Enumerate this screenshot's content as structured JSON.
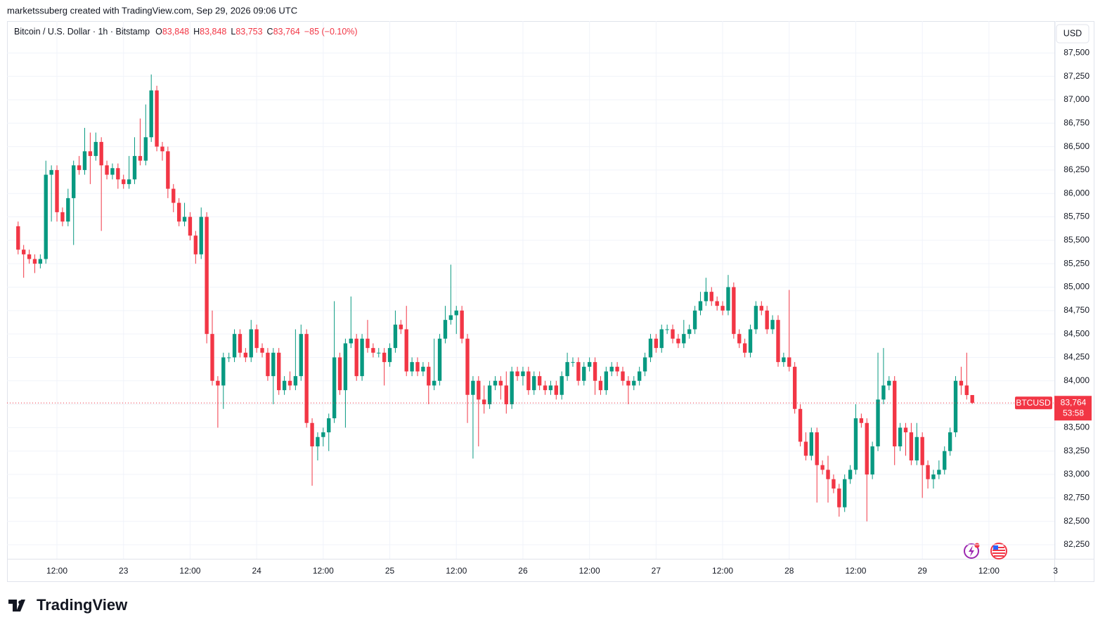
{
  "chart_data": {
    "type": "candlestick",
    "attribution": "marketssuberg created with TradingView.com, Sep 29, 2026 09:06 UTC",
    "brand": "TradingView",
    "currency": "USD",
    "legend": {
      "symbol": "Bitcoin / U.S. Dollar · 1h · Bitstamp",
      "fields": [
        {
          "key": "O",
          "value": "83,848"
        },
        {
          "key": "H",
          "value": "83,848"
        },
        {
          "key": "L",
          "value": "83,753"
        },
        {
          "key": "C",
          "value": "83,764"
        }
      ],
      "change": "−85 (−0.10%)"
    },
    "ticker": "BTCUSD",
    "last_price": {
      "value": 83764,
      "label": "83,764"
    },
    "countdown": "53:58",
    "up_color": "#089981",
    "down_color": "#f23645",
    "grid": true,
    "x": [
      "22 05:00",
      "22 06:00",
      "22 07:00",
      "22 08:00",
      "22 09:00",
      "22 10:00",
      "22 11:00",
      "22 12:00",
      "22 13:00",
      "22 14:00",
      "22 15:00",
      "22 16:00",
      "22 17:00",
      "22 18:00",
      "22 19:00",
      "22 20:00",
      "22 21:00",
      "22 22:00",
      "22 23:00",
      "23 00:00",
      "23 01:00",
      "23 02:00",
      "23 03:00",
      "23 04:00",
      "23 05:00",
      "23 06:00",
      "23 07:00",
      "23 08:00",
      "23 09:00",
      "23 10:00",
      "23 11:00",
      "23 12:00",
      "23 13:00",
      "23 14:00",
      "23 15:00",
      "23 16:00",
      "23 17:00",
      "23 18:00",
      "23 19:00",
      "23 20:00",
      "23 21:00",
      "23 22:00",
      "23 23:00",
      "24 00:00",
      "24 01:00",
      "24 02:00",
      "24 03:00",
      "24 04:00",
      "24 05:00",
      "24 06:00",
      "24 07:00",
      "24 08:00",
      "24 09:00",
      "24 10:00",
      "24 11:00",
      "24 12:00",
      "24 13:00",
      "24 14:00",
      "24 15:00",
      "24 16:00",
      "24 17:00",
      "24 18:00",
      "24 19:00",
      "24 20:00",
      "24 21:00",
      "24 22:00",
      "24 23:00",
      "25 00:00",
      "25 01:00",
      "25 02:00",
      "25 03:00",
      "25 04:00",
      "25 05:00",
      "25 06:00",
      "25 07:00",
      "25 08:00",
      "25 09:00",
      "25 10:00",
      "25 11:00",
      "25 12:00",
      "25 13:00",
      "25 14:00",
      "25 15:00",
      "25 16:00",
      "25 17:00",
      "25 18:00",
      "25 19:00",
      "25 20:00",
      "25 21:00",
      "25 22:00",
      "25 23:00",
      "26 00:00",
      "26 01:00",
      "26 02:00",
      "26 03:00",
      "26 04:00",
      "26 05:00",
      "26 06:00",
      "26 07:00",
      "26 08:00",
      "26 09:00",
      "26 10:00",
      "26 11:00",
      "26 12:00",
      "26 13:00",
      "26 14:00",
      "26 15:00",
      "26 16:00",
      "26 17:00",
      "26 18:00",
      "26 19:00",
      "26 20:00",
      "26 21:00",
      "26 22:00",
      "26 23:00",
      "27 00:00",
      "27 01:00",
      "27 02:00",
      "27 03:00",
      "27 04:00",
      "27 05:00",
      "27 06:00",
      "27 07:00",
      "27 08:00",
      "27 09:00",
      "27 10:00",
      "27 11:00",
      "27 12:00",
      "27 13:00",
      "27 14:00",
      "27 15:00",
      "27 16:00",
      "27 17:00",
      "27 18:00",
      "27 19:00",
      "27 20:00",
      "27 21:00",
      "27 22:00",
      "27 23:00",
      "28 00:00",
      "28 01:00",
      "28 02:00",
      "28 03:00",
      "28 04:00",
      "28 05:00",
      "28 06:00",
      "28 07:00",
      "28 08:00",
      "28 09:00",
      "28 10:00",
      "28 11:00",
      "28 12:00",
      "28 13:00",
      "28 14:00",
      "28 15:00",
      "28 16:00",
      "28 17:00",
      "28 18:00",
      "28 19:00",
      "28 20:00",
      "28 21:00",
      "28 22:00",
      "28 23:00",
      "29 00:00",
      "29 01:00",
      "29 02:00",
      "29 03:00",
      "29 04:00",
      "29 05:00",
      "29 06:00",
      "29 07:00",
      "29 08:00",
      "29 09:00"
    ],
    "open": [
      85650,
      85400,
      85350,
      85300,
      85250,
      85300,
      86200,
      86250,
      85800,
      85700,
      85950,
      86300,
      86250,
      86450,
      86400,
      86550,
      86300,
      86200,
      86270,
      86150,
      86100,
      86150,
      86400,
      86350,
      86600,
      87100,
      86500,
      86450,
      86050,
      85900,
      85700,
      85750,
      85550,
      85350,
      85750,
      84500,
      84000,
      83950,
      84250,
      84250,
      84500,
      84300,
      84250,
      84550,
      84350,
      84300,
      84050,
      84300,
      83900,
      84000,
      83950,
      84050,
      84500,
      83550,
      83300,
      83400,
      83450,
      83600,
      84250,
      83900,
      84400,
      84450,
      84050,
      84450,
      84350,
      84300,
      84300,
      84200,
      84350,
      84600,
      84550,
      84100,
      84200,
      84100,
      84150,
      83950,
      84000,
      84450,
      84650,
      84700,
      84750,
      84450,
      83850,
      84000,
      83800,
      83750,
      83950,
      84000,
      83950,
      83750,
      84100,
      84050,
      84100,
      83900,
      84050,
      83950,
      83900,
      83950,
      83850,
      84050,
      84200,
      84200,
      84000,
      84150,
      84200,
      84000,
      83900,
      84100,
      84150,
      84100,
      84000,
      83950,
      84000,
      84100,
      84250,
      84450,
      84350,
      84550,
      84550,
      84450,
      84400,
      84500,
      84550,
      84750,
      84850,
      84950,
      84850,
      84800,
      84750,
      85000,
      84500,
      84400,
      84300,
      84550,
      84800,
      84750,
      84550,
      84650,
      84200,
      84250,
      84150,
      83700,
      83350,
      83200,
      83450,
      83100,
      83050,
      82950,
      82850,
      82650,
      82950,
      83050,
      83600,
      83550,
      83000,
      83300,
      83800,
      83950,
      84000,
      83300,
      83500,
      83450,
      83150,
      83400,
      83100,
      82950,
      83000,
      83050,
      83250,
      83450,
      84000,
      83950,
      83848
    ],
    "high": [
      85700,
      85450,
      85400,
      85350,
      85350,
      86350,
      86300,
      86300,
      85850,
      86050,
      86350,
      86400,
      86700,
      86650,
      86650,
      86600,
      86350,
      86320,
      86320,
      86200,
      86400,
      86600,
      86800,
      86950,
      87270,
      87150,
      86550,
      86500,
      86100,
      85950,
      85900,
      85800,
      85600,
      85850,
      85800,
      84750,
      84050,
      84300,
      84300,
      84550,
      84550,
      84350,
      84650,
      84600,
      84400,
      84350,
      84350,
      84350,
      84050,
      84100,
      84550,
      84600,
      84550,
      83600,
      83450,
      83500,
      83650,
      84850,
      84300,
      84450,
      84900,
      84500,
      84500,
      84650,
      84400,
      84350,
      84350,
      84400,
      84750,
      84650,
      84800,
      84250,
      84250,
      84200,
      84200,
      84450,
      84500,
      84800,
      85240,
      84800,
      84800,
      84500,
      84050,
      84050,
      83950,
      84000,
      84050,
      84050,
      84100,
      84150,
      84150,
      84150,
      84150,
      84100,
      84100,
      84000,
      84000,
      84000,
      84100,
      84300,
      84250,
      84250,
      84200,
      84250,
      84250,
      84050,
      84150,
      84200,
      84200,
      84150,
      84050,
      84050,
      84150,
      84300,
      84500,
      84500,
      84600,
      84600,
      84600,
      84500,
      84650,
      84600,
      84800,
      84950,
      85100,
      85000,
      84900,
      84850,
      85130,
      85050,
      84550,
      84450,
      84600,
      84850,
      84850,
      84800,
      84700,
      84700,
      84300,
      84970,
      84200,
      83750,
      83450,
      83500,
      83500,
      83150,
      83200,
      83000,
      82900,
      83000,
      83100,
      83750,
      83650,
      83600,
      83350,
      84300,
      84350,
      84050,
      84050,
      83550,
      83550,
      83550,
      83550,
      83450,
      83150,
      83050,
      83150,
      83300,
      83500,
      84050,
      84150,
      84300,
      83848
    ],
    "low": [
      85350,
      85100,
      85250,
      85150,
      85200,
      85250,
      85700,
      85700,
      85650,
      85650,
      85450,
      86200,
      86200,
      86100,
      86350,
      85600,
      86150,
      86150,
      86050,
      86050,
      86050,
      86100,
      86300,
      86300,
      86550,
      86450,
      86350,
      85950,
      85800,
      85650,
      85650,
      85500,
      85250,
      85300,
      84400,
      83950,
      83500,
      83700,
      84200,
      84200,
      84250,
      84200,
      84200,
      84300,
      84250,
      84000,
      83750,
      83850,
      83850,
      83900,
      83900,
      84000,
      83500,
      82880,
      83150,
      83300,
      83250,
      83550,
      83850,
      83500,
      84350,
      84000,
      84000,
      84300,
      84250,
      84250,
      83950,
      84150,
      84300,
      84500,
      84050,
      84050,
      84050,
      84050,
      83750,
      83900,
      83950,
      84400,
      84600,
      84500,
      84400,
      83550,
      83170,
      83300,
      83650,
      83700,
      83900,
      83800,
      83650,
      83700,
      84000,
      83950,
      83850,
      83850,
      83900,
      83850,
      83850,
      83800,
      83800,
      84000,
      84150,
      83950,
      83950,
      84100,
      83850,
      83850,
      83850,
      84050,
      84050,
      83950,
      83750,
      83900,
      83950,
      84050,
      84200,
      84300,
      84300,
      84500,
      84400,
      84350,
      84350,
      84450,
      84500,
      84700,
      84800,
      84800,
      84750,
      84700,
      84700,
      84450,
      84350,
      84250,
      84250,
      84500,
      84700,
      84500,
      84500,
      84150,
      84150,
      84100,
      83650,
      83300,
      83150,
      83150,
      82700,
      83000,
      82700,
      82800,
      82550,
      82600,
      82900,
      83000,
      83500,
      82500,
      82950,
      83250,
      83750,
      83900,
      83100,
      83250,
      83200,
      83100,
      83100,
      82750,
      82850,
      82850,
      82950,
      83000,
      83200,
      83400,
      83850,
      83800,
      83753
    ],
    "close": [
      85400,
      85350,
      85300,
      85250,
      85300,
      86200,
      86250,
      85800,
      85700,
      85950,
      86300,
      86250,
      86450,
      86400,
      86550,
      86300,
      86200,
      86270,
      86150,
      86100,
      86150,
      86400,
      86350,
      86600,
      87100,
      86500,
      86450,
      86050,
      85900,
      85700,
      85750,
      85550,
      85350,
      85750,
      84500,
      84000,
      83950,
      84250,
      84250,
      84500,
      84300,
      84250,
      84550,
      84350,
      84300,
      84050,
      84300,
      83900,
      84000,
      83950,
      84050,
      84500,
      83550,
      83300,
      83400,
      83450,
      83600,
      84250,
      83900,
      84400,
      84450,
      84050,
      84450,
      84350,
      84300,
      84300,
      84200,
      84350,
      84600,
      84550,
      84100,
      84200,
      84100,
      84150,
      83950,
      84000,
      84450,
      84650,
      84700,
      84750,
      84450,
      83850,
      84000,
      83800,
      83750,
      83950,
      84000,
      83950,
      83750,
      84100,
      84050,
      84100,
      83900,
      84050,
      83950,
      83900,
      83950,
      83850,
      84050,
      84200,
      84200,
      84000,
      84150,
      84200,
      84000,
      83900,
      84100,
      84150,
      84100,
      84000,
      83950,
      84000,
      84100,
      84250,
      84450,
      84350,
      84550,
      84550,
      84450,
      84400,
      84500,
      84550,
      84750,
      84850,
      84950,
      84850,
      84800,
      84750,
      85000,
      84500,
      84400,
      84300,
      84550,
      84800,
      84750,
      84550,
      84650,
      84200,
      84250,
      84150,
      83700,
      83350,
      83200,
      83450,
      83100,
      83050,
      82950,
      82850,
      82650,
      82950,
      83050,
      83600,
      83550,
      83000,
      83300,
      83800,
      83950,
      84000,
      83300,
      83500,
      83450,
      83150,
      83400,
      83100,
      82950,
      83000,
      83050,
      83250,
      83450,
      84000,
      83950,
      83848,
      83764
    ],
    "xlim": [
      "22 03:00",
      "29 23:48"
    ],
    "xticks": [
      {
        "value": "22 12:00",
        "label": "12:00"
      },
      {
        "value": "23 00:00",
        "label": "23"
      },
      {
        "value": "23 12:00",
        "label": "12:00"
      },
      {
        "value": "24 00:00",
        "label": "24"
      },
      {
        "value": "24 12:00",
        "label": "12:00"
      },
      {
        "value": "25 00:00",
        "label": "25"
      },
      {
        "value": "25 12:00",
        "label": "12:00"
      },
      {
        "value": "26 00:00",
        "label": "26"
      },
      {
        "value": "26 12:00",
        "label": "12:00"
      },
      {
        "value": "27 00:00",
        "label": "27"
      },
      {
        "value": "27 12:00",
        "label": "12:00"
      },
      {
        "value": "28 00:00",
        "label": "28"
      },
      {
        "value": "28 12:00",
        "label": "12:00"
      },
      {
        "value": "29 00:00",
        "label": "29"
      },
      {
        "value": "29 12:00",
        "label": "12:00"
      },
      {
        "value": "30 00:00",
        "label": "3"
      }
    ],
    "ylim": [
      82100,
      87840
    ],
    "yticks": [
      {
        "value": 82250,
        "label": "82,250"
      },
      {
        "value": 82500,
        "label": "82,500"
      },
      {
        "value": 82750,
        "label": "82,750"
      },
      {
        "value": 83000,
        "label": "83,000"
      },
      {
        "value": 83250,
        "label": "83,250"
      },
      {
        "value": 83500,
        "label": "83,500"
      },
      {
        "value": 83750,
        "label": "83,750"
      },
      {
        "value": 84000,
        "label": "84,000"
      },
      {
        "value": 84250,
        "label": "84,250"
      },
      {
        "value": 84500,
        "label": "84,500"
      },
      {
        "value": 84750,
        "label": "84,750"
      },
      {
        "value": 85000,
        "label": "85,000"
      },
      {
        "value": 85250,
        "label": "85,250"
      },
      {
        "value": 85500,
        "label": "85,500"
      },
      {
        "value": 85750,
        "label": "85,750"
      },
      {
        "value": 86000,
        "label": "86,000"
      },
      {
        "value": 86250,
        "label": "86,250"
      },
      {
        "value": 86500,
        "label": "86,500"
      },
      {
        "value": 86750,
        "label": "86,750"
      },
      {
        "value": 87000,
        "label": "87,000"
      },
      {
        "value": 87250,
        "label": "87,250"
      },
      {
        "value": 87500,
        "label": "87,500"
      }
    ]
  }
}
